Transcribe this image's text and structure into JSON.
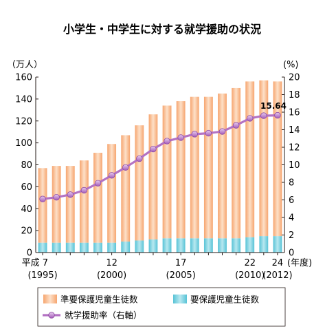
{
  "chart_data": {
    "type": "bar",
    "title": "小学生・中学生に対する就学援助の状況",
    "left_unit": "（万人）",
    "right_unit": "(%)",
    "x_unit": "(年度)",
    "years": [
      1995,
      1996,
      1997,
      1998,
      1999,
      2000,
      2001,
      2002,
      2003,
      2004,
      2005,
      2006,
      2007,
      2008,
      2009,
      2010,
      2011,
      2012
    ],
    "x_tick_labels": [
      {
        "year": 1995,
        "era": "平成 7",
        "western": "(1995)"
      },
      {
        "year": 2000,
        "era": "12",
        "western": "(2000)"
      },
      {
        "year": 2005,
        "era": "17",
        "western": "(2005)"
      },
      {
        "year": 2010,
        "era": "22",
        "western": "(2010)"
      },
      {
        "year": 2012,
        "era": "24",
        "western": "(2012)"
      }
    ],
    "left_axis": {
      "min": 0,
      "max": 160,
      "ticks": [
        0,
        20,
        40,
        60,
        80,
        100,
        120,
        140,
        160
      ]
    },
    "right_axis": {
      "min": 0,
      "max": 20,
      "ticks": [
        0,
        2,
        4,
        6,
        8,
        10,
        12,
        14,
        16,
        18,
        20
      ]
    },
    "series": [
      {
        "name": "要保護児童生徒数",
        "kind": "bar",
        "color": "#7fd2e0",
        "values": [
          9,
          9,
          9,
          9,
          9,
          9,
          10,
          11,
          12,
          13,
          13,
          13,
          13,
          13,
          13,
          14,
          15,
          15
        ]
      },
      {
        "name": "準要保護児童生徒数",
        "kind": "bar",
        "color": "#f9b98a",
        "values": [
          68,
          70,
          70,
          75,
          82,
          90,
          97,
          105,
          114,
          121,
          125,
          129,
          129,
          132,
          137,
          142,
          142,
          141
        ]
      },
      {
        "name": "就学援助率（右軸）",
        "kind": "line",
        "axis": "right",
        "color": "#b472c3",
        "values": [
          6.1,
          6.3,
          6.6,
          7.1,
          7.9,
          8.8,
          9.7,
          10.7,
          11.8,
          12.7,
          13.1,
          13.5,
          13.6,
          13.8,
          14.5,
          15.3,
          15.6,
          15.64
        ]
      }
    ],
    "annotation": {
      "text": "15.64",
      "year": 2012
    },
    "legend": [
      {
        "label": "準要保護児童生徒数",
        "swatch": "bar",
        "color": "#f9b98a"
      },
      {
        "label": "要保護児童生徒数",
        "swatch": "bar",
        "color": "#7fd2e0"
      },
      {
        "label": "就学援助率（右軸）",
        "swatch": "line",
        "color": "#b472c3"
      }
    ],
    "legend_placement": "bottom",
    "grid": false
  }
}
